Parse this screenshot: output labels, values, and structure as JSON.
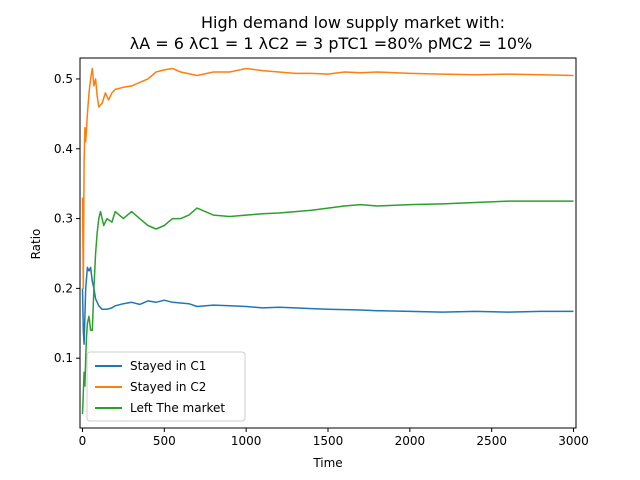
{
  "chart_data": {
    "type": "line",
    "title": "High demand low supply market with:",
    "subtitle": "λA = 6 λC1 = 1 λC2 = 3 pTC1 =80% pMC2 = 10%",
    "xlabel": "Time",
    "ylabel": "Ratio",
    "xlim": [
      -15,
      3015
    ],
    "ylim": [
      0.0,
      0.53
    ],
    "xticks": [
      0,
      500,
      1000,
      1500,
      2000,
      2500,
      3000
    ],
    "yticks": [
      0.1,
      0.2,
      0.3,
      0.4,
      0.5
    ],
    "grid": false,
    "legend_position": "lower-left",
    "series": [
      {
        "name": "Stayed in C1",
        "color": "#1f77b4",
        "x": [
          0,
          5,
          10,
          20,
          30,
          40,
          50,
          60,
          70,
          80,
          100,
          120,
          150,
          180,
          200,
          250,
          300,
          350,
          400,
          450,
          500,
          550,
          600,
          650,
          700,
          800,
          900,
          1000,
          1100,
          1200,
          1300,
          1400,
          1500,
          1700,
          1800,
          2000,
          2200,
          2400,
          2600,
          2800,
          3000
        ],
        "values": [
          0.2,
          0.14,
          0.12,
          0.2,
          0.23,
          0.225,
          0.23,
          0.21,
          0.2,
          0.185,
          0.175,
          0.17,
          0.17,
          0.172,
          0.175,
          0.178,
          0.18,
          0.177,
          0.182,
          0.18,
          0.183,
          0.18,
          0.179,
          0.178,
          0.174,
          0.176,
          0.175,
          0.174,
          0.172,
          0.173,
          0.172,
          0.171,
          0.17,
          0.169,
          0.168,
          0.167,
          0.166,
          0.167,
          0.166,
          0.167,
          0.167
        ]
      },
      {
        "name": "Stayed in C2",
        "color": "#ff7f0e",
        "x": [
          0,
          5,
          10,
          15,
          20,
          30,
          40,
          50,
          60,
          70,
          80,
          90,
          100,
          120,
          140,
          160,
          180,
          200,
          250,
          300,
          350,
          400,
          450,
          500,
          550,
          600,
          700,
          800,
          900,
          1000,
          1100,
          1200,
          1300,
          1400,
          1500,
          1600,
          1700,
          1800,
          2000,
          2200,
          2400,
          2600,
          2800,
          3000
        ],
        "values": [
          0.33,
          0.2,
          0.38,
          0.43,
          0.41,
          0.45,
          0.48,
          0.5,
          0.515,
          0.49,
          0.5,
          0.475,
          0.46,
          0.465,
          0.48,
          0.47,
          0.48,
          0.485,
          0.488,
          0.49,
          0.495,
          0.5,
          0.51,
          0.513,
          0.515,
          0.51,
          0.505,
          0.51,
          0.51,
          0.515,
          0.512,
          0.51,
          0.508,
          0.508,
          0.507,
          0.51,
          0.509,
          0.51,
          0.508,
          0.507,
          0.506,
          0.507,
          0.506,
          0.505
        ]
      },
      {
        "name": "Left The market",
        "color": "#2ca02c",
        "x": [
          0,
          5,
          10,
          15,
          20,
          25,
          30,
          40,
          50,
          60,
          70,
          80,
          90,
          100,
          110,
          120,
          130,
          150,
          180,
          200,
          250,
          300,
          350,
          400,
          450,
          500,
          550,
          600,
          650,
          700,
          750,
          800,
          900,
          1000,
          1100,
          1200,
          1300,
          1400,
          1500,
          1600,
          1700,
          1800,
          2000,
          2200,
          2400,
          2600,
          2800,
          3000
        ],
        "values": [
          0.02,
          0.05,
          0.08,
          0.06,
          0.1,
          0.13,
          0.15,
          0.16,
          0.14,
          0.14,
          0.2,
          0.25,
          0.28,
          0.3,
          0.31,
          0.3,
          0.29,
          0.3,
          0.295,
          0.31,
          0.3,
          0.31,
          0.3,
          0.29,
          0.285,
          0.29,
          0.3,
          0.3,
          0.305,
          0.315,
          0.31,
          0.305,
          0.303,
          0.305,
          0.307,
          0.308,
          0.31,
          0.312,
          0.315,
          0.318,
          0.32,
          0.318,
          0.32,
          0.321,
          0.323,
          0.325,
          0.325,
          0.325
        ]
      }
    ]
  }
}
